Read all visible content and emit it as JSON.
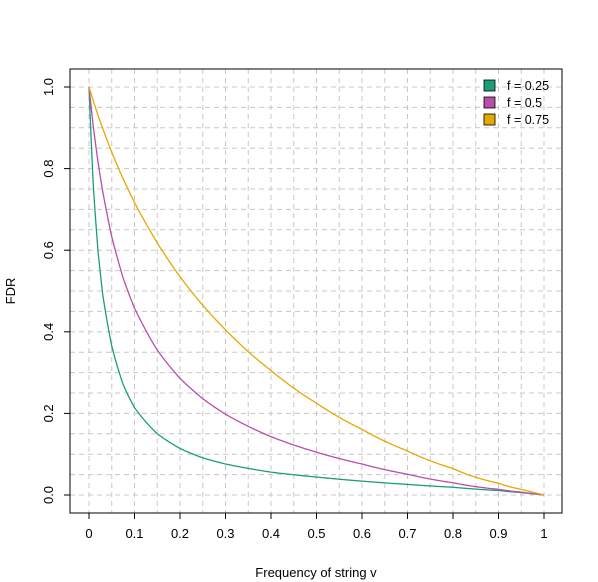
{
  "chart_data": {
    "type": "line",
    "title": "",
    "xlabel": "Frequency of string v",
    "ylabel": "FDR",
    "xlim": [
      0,
      1
    ],
    "ylim": [
      0,
      1
    ],
    "x_ticks": [
      0,
      0.1,
      0.2,
      0.3,
      0.4,
      0.5,
      0.6,
      0.7,
      0.8,
      0.9,
      1
    ],
    "x_tick_labels": [
      "0",
      "0.1",
      "0.2",
      "0.3",
      "0.4",
      "0.5",
      "0.6",
      "0.7",
      "0.8",
      "0.9",
      "1"
    ],
    "y_ticks": [
      0,
      0.2,
      0.4,
      0.6,
      0.8,
      1
    ],
    "y_tick_labels": [
      "0.0",
      "0.2",
      "0.4",
      "0.6",
      "0.8",
      "1.0"
    ],
    "grid": "dashed, minor",
    "legend_position": "top-right",
    "x": [
      0,
      0.01,
      0.02,
      0.03,
      0.05,
      0.075,
      0.1,
      0.15,
      0.2,
      0.25,
      0.3,
      0.4,
      0.5,
      0.6,
      0.7,
      0.8,
      0.9,
      0.95,
      1.0
    ],
    "series": [
      {
        "name": "f = 0.25",
        "color": "#1b9e77",
        "values": [
          1.0,
          0.749,
          0.596,
          0.493,
          0.365,
          0.271,
          0.214,
          0.15,
          0.114,
          0.091,
          0.076,
          0.056,
          0.044,
          0.034,
          0.026,
          0.019,
          0.011,
          0.006,
          0.0
        ]
      },
      {
        "name": "f = 0.5",
        "color": "#b84ea8",
        "values": [
          1.0,
          0.898,
          0.815,
          0.745,
          0.633,
          0.532,
          0.458,
          0.355,
          0.286,
          0.236,
          0.198,
          0.143,
          0.105,
          0.076,
          0.051,
          0.03,
          0.014,
          0.007,
          0.0
        ]
      },
      {
        "name": "f = 0.75",
        "color": "#e6a800",
        "values": [
          1.0,
          0.964,
          0.93,
          0.899,
          0.84,
          0.775,
          0.717,
          0.618,
          0.535,
          0.465,
          0.405,
          0.305,
          0.225,
          0.161,
          0.108,
          0.065,
          0.029,
          0.014,
          0.0
        ]
      }
    ]
  }
}
